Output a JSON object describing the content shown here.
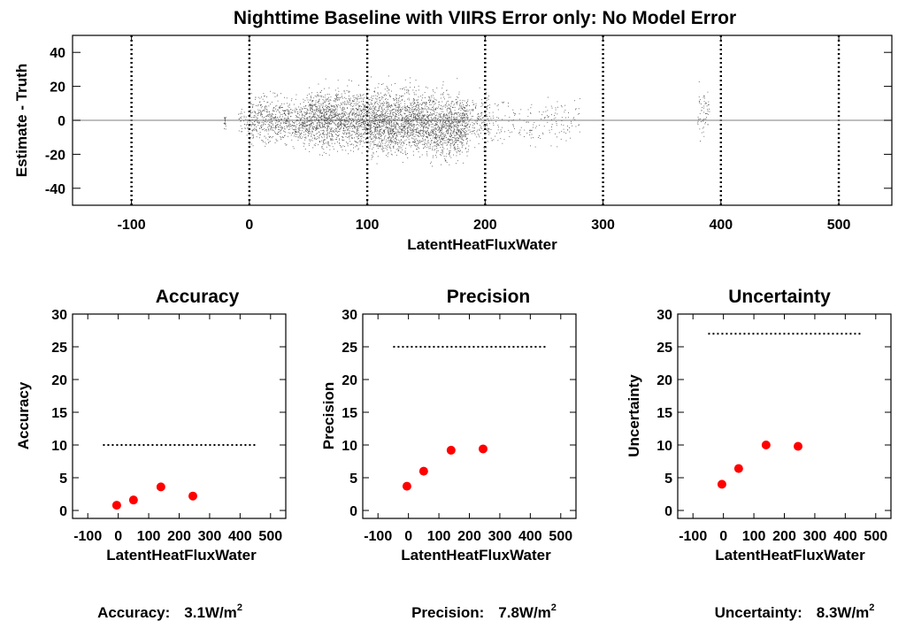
{
  "page": {
    "title": "Nighttime Baseline with VIIRS Error only: No Model Error"
  },
  "colors": {
    "points": "#ff0000",
    "scatter": "#555555",
    "zero_line": "#999999"
  },
  "chart_data": [
    {
      "id": "main",
      "type": "scatter",
      "title": "Nighttime Baseline with VIIRS Error only: No Model Error",
      "xlabel": "LatentHeatFluxWater",
      "ylabel": "Estimate - Truth",
      "xlim": [
        -150,
        545
      ],
      "ylim": [
        -50,
        50
      ],
      "xticks": [
        -100,
        0,
        100,
        200,
        300,
        400,
        500
      ],
      "xtick_labels": [
        "-100",
        "0",
        "100",
        "200",
        "300",
        "400",
        "500"
      ],
      "yticks": [
        -40,
        -20,
        0,
        20,
        40
      ],
      "ytick_labels": [
        "-40",
        "-20",
        "0",
        "20",
        "40"
      ],
      "vertical_dotted_lines": [
        -100,
        0,
        100,
        200,
        300,
        400,
        500
      ],
      "zero_line": 0,
      "point_density": [
        {
          "x_range": [
            -22,
            -20
          ],
          "y_range": [
            -10,
            8
          ],
          "n": 20
        },
        {
          "x_range": [
            -10,
            0
          ],
          "y_range": [
            -14,
            12
          ],
          "n": 40
        },
        {
          "x_range": [
            0,
            50
          ],
          "y_range": [
            -25,
            25
          ],
          "n": 700
        },
        {
          "x_range": [
            50,
            100
          ],
          "y_range": [
            -30,
            32
          ],
          "n": 1300
        },
        {
          "x_range": [
            100,
            150
          ],
          "y_range": [
            -35,
            34
          ],
          "n": 1500
        },
        {
          "x_range": [
            150,
            185
          ],
          "y_range": [
            -38,
            32
          ],
          "n": 1000
        },
        {
          "x_range": [
            185,
            205
          ],
          "y_range": [
            -30,
            28
          ],
          "n": 160
        },
        {
          "x_range": [
            205,
            280
          ],
          "y_range": [
            -26,
            24
          ],
          "n": 180
        },
        {
          "x_range": [
            380,
            390
          ],
          "y_range": [
            -22,
            36
          ],
          "n": 60
        }
      ]
    },
    {
      "id": "accuracy",
      "type": "scatter",
      "title": "Accuracy",
      "xlabel": "LatentHeatFluxWater",
      "ylabel": "Accuracy",
      "xlim": [
        -150,
        550
      ],
      "ylim": [
        0,
        30
      ],
      "xtick_labels": [
        "-100",
        "0",
        "100",
        "200",
        "300",
        "400",
        "500"
      ],
      "ytick_labels": [
        "0",
        "5",
        "10",
        "15",
        "20",
        "25",
        "30"
      ],
      "points": [
        {
          "x": -5,
          "y": 0.8
        },
        {
          "x": 50,
          "y": 1.6
        },
        {
          "x": 140,
          "y": 3.6
        },
        {
          "x": 245,
          "y": 2.2
        }
      ],
      "threshold": {
        "value": 10,
        "x_range": [
          -50,
          450
        ]
      },
      "summary": {
        "label": "Accuracy:",
        "value": "3.1W/m",
        "unit_sup": "2"
      }
    },
    {
      "id": "precision",
      "type": "scatter",
      "title": "Precision",
      "xlabel": "LatentHeatFluxWater",
      "ylabel": "Precision",
      "xlim": [
        -150,
        550
      ],
      "ylim": [
        0,
        30
      ],
      "xtick_labels": [
        "-100",
        "0",
        "100",
        "200",
        "300",
        "400",
        "500"
      ],
      "ytick_labels": [
        "0",
        "5",
        "10",
        "15",
        "20",
        "25",
        "30"
      ],
      "points": [
        {
          "x": -5,
          "y": 3.7
        },
        {
          "x": 50,
          "y": 6.0
        },
        {
          "x": 140,
          "y": 9.2
        },
        {
          "x": 245,
          "y": 9.4
        }
      ],
      "threshold": {
        "value": 25,
        "x_range": [
          -50,
          450
        ]
      },
      "summary": {
        "label": "Precision:",
        "value": "7.8W/m",
        "unit_sup": "2"
      }
    },
    {
      "id": "uncertainty",
      "type": "scatter",
      "title": "Uncertainty",
      "xlabel": "LatentHeatFluxWater",
      "ylabel": "Uncertainty",
      "xlim": [
        -150,
        550
      ],
      "ylim": [
        0,
        30
      ],
      "xtick_labels": [
        "-100",
        "0",
        "100",
        "200",
        "300",
        "400",
        "500"
      ],
      "ytick_labels": [
        "0",
        "5",
        "10",
        "15",
        "20",
        "25",
        "30"
      ],
      "points": [
        {
          "x": -5,
          "y": 4.0
        },
        {
          "x": 50,
          "y": 6.4
        },
        {
          "x": 140,
          "y": 10.0
        },
        {
          "x": 245,
          "y": 9.8
        }
      ],
      "threshold": {
        "value": 27,
        "x_range": [
          -50,
          450
        ]
      },
      "summary": {
        "label": "Uncertainty:",
        "value": "8.3W/m",
        "unit_sup": "2"
      }
    }
  ]
}
